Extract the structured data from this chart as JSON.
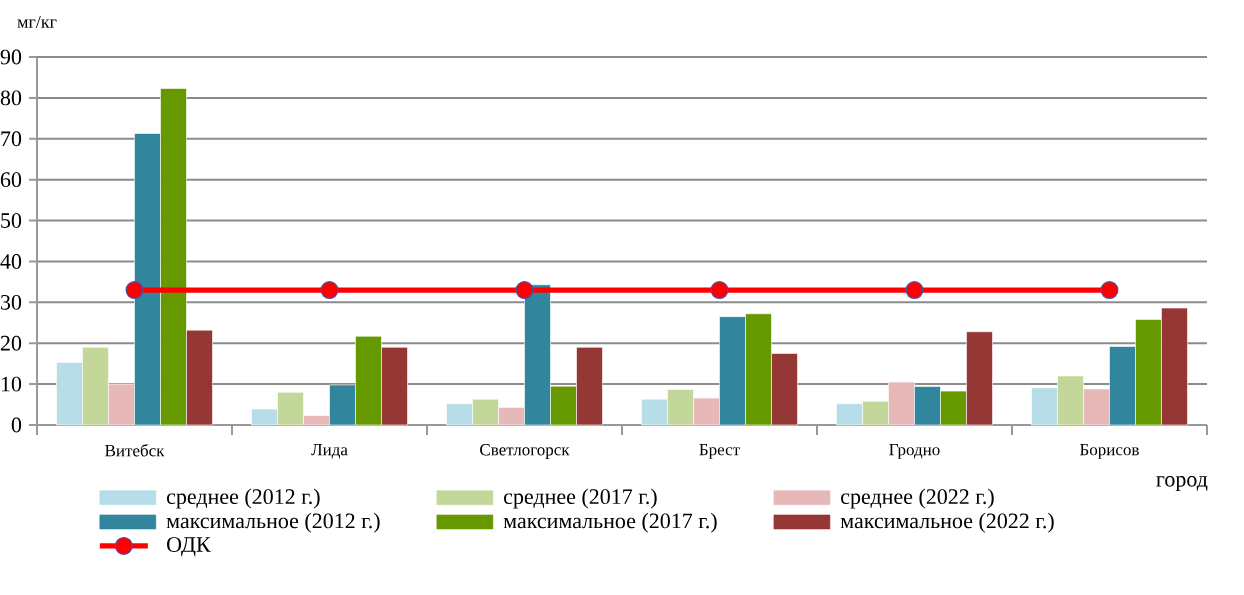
{
  "chart_data": {
    "type": "bar",
    "ylabel": "мг/кг",
    "xlabel": "город",
    "categories": [
      "Витебск",
      "Лида",
      "Светлогорск",
      "Брест",
      "Гродно",
      "Борисов"
    ],
    "series": [
      {
        "name": "среднее (2012 г.)",
        "color": "#b7dde8",
        "values": [
          15.3,
          3.9,
          5.2,
          6.3,
          5.2,
          9.1
        ]
      },
      {
        "name": "среднее (2017 г.)",
        "color": "#c4d79b",
        "values": [
          19.0,
          8.0,
          6.3,
          8.7,
          5.8,
          12.0
        ]
      },
      {
        "name": "среднее (2022 г.)",
        "color": "#e6b9b8",
        "values": [
          10.0,
          2.3,
          4.3,
          6.6,
          10.5,
          8.8
        ]
      },
      {
        "name": "максимальное (2012 г.)",
        "color": "#31859c",
        "values": [
          71.3,
          9.8,
          34.3,
          26.5,
          9.4,
          19.2
        ]
      },
      {
        "name": "максимальное (2017 г.)",
        "color": "#669900",
        "values": [
          82.3,
          21.7,
          9.5,
          27.2,
          8.3,
          25.8
        ]
      },
      {
        "name": "максимальное (2022 г.)",
        "color": "#953735",
        "values": [
          23.2,
          19.0,
          19.0,
          17.5,
          22.8,
          28.6
        ]
      },
      {
        "name": "ОДК",
        "type": "line",
        "color": "#ff0000",
        "marker": "circle",
        "values": [
          33,
          33,
          33,
          33,
          33,
          33
        ]
      }
    ],
    "ylim": [
      0,
      90
    ],
    "yticks": [
      0,
      10,
      20,
      30,
      40,
      50,
      60,
      70,
      80,
      90
    ],
    "grid": "y",
    "legend": "bottom"
  }
}
